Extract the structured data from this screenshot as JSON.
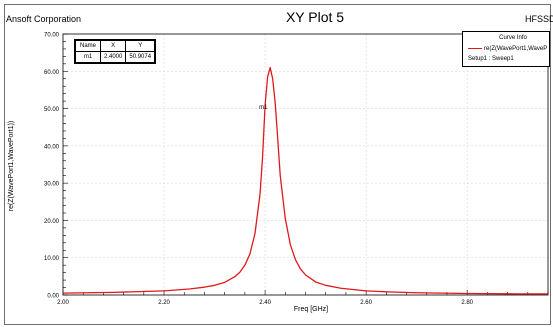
{
  "header": {
    "company": "Ansoft Corporation",
    "title": "XY Plot 5",
    "product": "HFSSD"
  },
  "marker_table": {
    "headers": [
      "Name",
      "X",
      "Y"
    ],
    "rows": [
      [
        "m1",
        "2.4000",
        "50.9074"
      ]
    ]
  },
  "curve_info": {
    "title": "Curve Info",
    "trace": "re(Z(WavePort1,WaveP",
    "setup": "Setup1 : Sweep1",
    "color": "#e0191d"
  },
  "chart_data": {
    "type": "line",
    "title": "XY Plot 5",
    "xlabel": "Freq [GHz]",
    "ylabel": "re(Z(WavePort1,WavePort1))",
    "xlim": [
      2.0,
      2.96
    ],
    "ylim": [
      0,
      70
    ],
    "xticks": [
      2.0,
      2.2,
      2.4,
      2.6,
      2.8
    ],
    "xtick_labels": [
      "2.00",
      "2.20",
      "2.40",
      "2.60",
      "2.80"
    ],
    "yticks": [
      0,
      10,
      20,
      30,
      40,
      50,
      60,
      70
    ],
    "ytick_labels": [
      "0.00",
      "10.00",
      "20.00",
      "30.00",
      "40.00",
      "50.00",
      "60.00",
      "70.00"
    ],
    "grid": true,
    "legend": "top-right",
    "series": [
      {
        "name": "re(Z(WavePort1,WaveP",
        "color": "#e0191d",
        "x": [
          2.0,
          2.05,
          2.1,
          2.15,
          2.2,
          2.25,
          2.28,
          2.3,
          2.32,
          2.34,
          2.35,
          2.36,
          2.37,
          2.38,
          2.39,
          2.395,
          2.4,
          2.405,
          2.41,
          2.415,
          2.42,
          2.425,
          2.43,
          2.44,
          2.45,
          2.46,
          2.47,
          2.48,
          2.5,
          2.52,
          2.55,
          2.6,
          2.65,
          2.7,
          2.8,
          2.9,
          2.96
        ],
        "y": [
          0.5,
          0.6,
          0.7,
          0.9,
          1.1,
          1.6,
          2.1,
          2.6,
          3.4,
          4.9,
          6.1,
          8.0,
          11.0,
          16.5,
          27.0,
          37.0,
          50.9,
          58.5,
          61.0,
          58.0,
          51.5,
          42.0,
          32.0,
          20.5,
          13.5,
          9.5,
          7.0,
          5.4,
          3.5,
          2.6,
          1.8,
          1.1,
          0.8,
          0.6,
          0.4,
          0.3,
          0.3
        ]
      }
    ],
    "annotations": [
      {
        "label": "m1",
        "x": 2.4,
        "y": 50.9074
      }
    ]
  }
}
